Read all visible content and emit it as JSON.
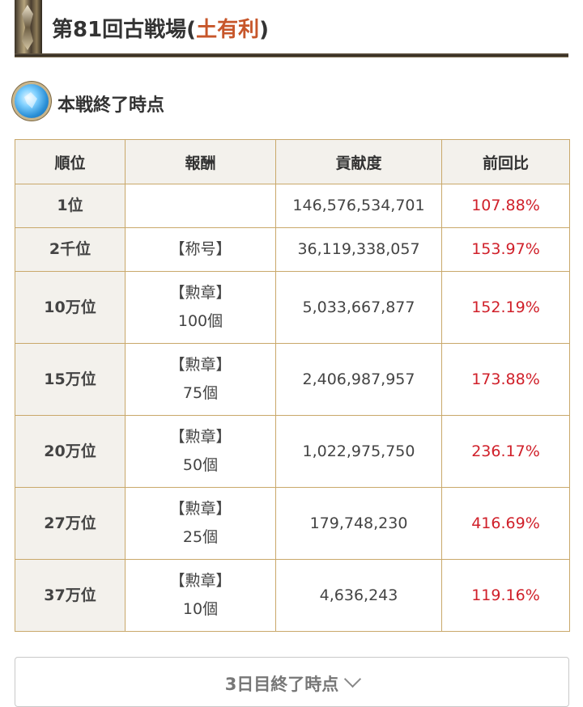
{
  "header": {
    "title_prefix": "第81回古戦場(",
    "title_accent": "土有利",
    "title_suffix": ")"
  },
  "section": {
    "title": "本戦終了時点"
  },
  "table": {
    "headers": {
      "rank": "順位",
      "reward": "報酬",
      "contribution": "貢献度",
      "ratio": "前回比"
    },
    "rows": [
      {
        "rank": "1位",
        "reward_line1": "",
        "reward_line2": "",
        "contribution": "146,576,534,701",
        "ratio": "107.88%"
      },
      {
        "rank": "2千位",
        "reward_line1": "【称号】",
        "reward_line2": "",
        "contribution": "36,119,338,057",
        "ratio": "153.97%"
      },
      {
        "rank": "10万位",
        "reward_line1": "【勲章】",
        "reward_line2": "100個",
        "contribution": "5,033,667,877",
        "ratio": "152.19%"
      },
      {
        "rank": "15万位",
        "reward_line1": "【勲章】",
        "reward_line2": "75個",
        "contribution": "2,406,987,957",
        "ratio": "173.88%"
      },
      {
        "rank": "20万位",
        "reward_line1": "【勲章】",
        "reward_line2": "50個",
        "contribution": "1,022,975,750",
        "ratio": "236.17%"
      },
      {
        "rank": "27万位",
        "reward_line1": "【勲章】",
        "reward_line2": "25個",
        "contribution": "179,748,230",
        "ratio": "416.69%"
      },
      {
        "rank": "37万位",
        "reward_line1": "【勲章】",
        "reward_line2": "10個",
        "contribution": "4,636,243",
        "ratio": "119.16%"
      }
    ]
  },
  "accordion": {
    "label": "3日目終了時点",
    "icon": "chevron-down-icon"
  },
  "colors": {
    "ratio": "#d0202a",
    "title_accent": "#c7562a",
    "border": "#c9a86a"
  }
}
